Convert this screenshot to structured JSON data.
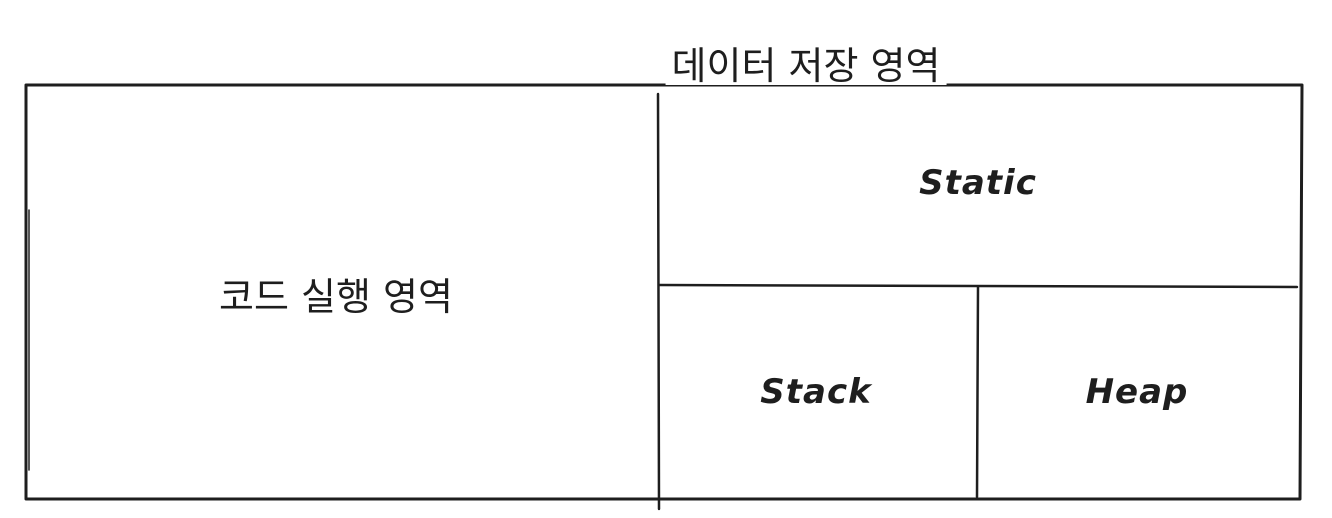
{
  "diagram": {
    "title": "데이터 저장 영역",
    "code_area_label": "코드 실행 영역",
    "static_label": "Static",
    "stack_label": "Stack",
    "heap_label": "Heap",
    "stroke_color": "#1e1e1e",
    "background_color": "#ffffff"
  }
}
